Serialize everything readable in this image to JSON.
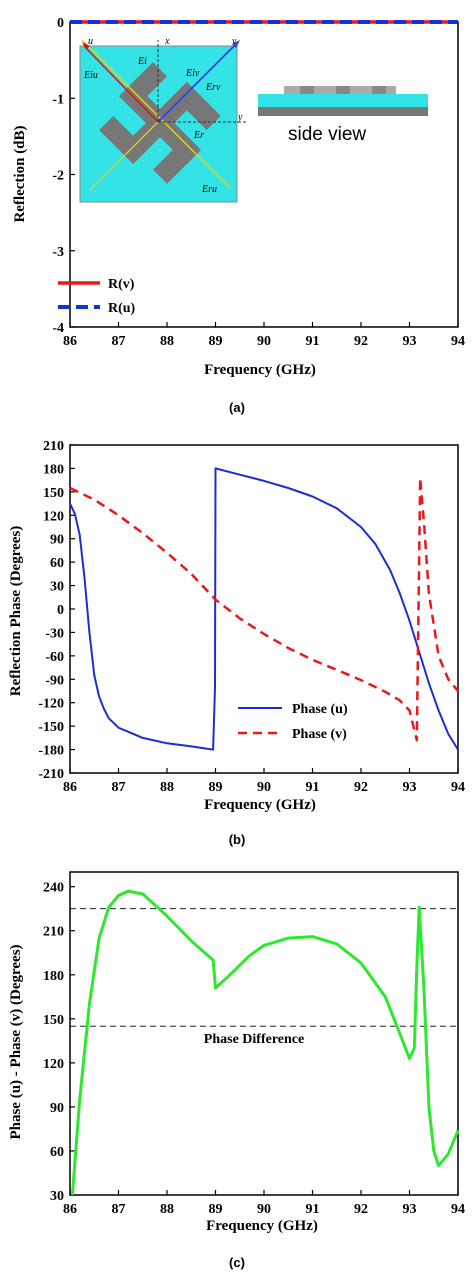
{
  "chart_data": [
    {
      "panel": "(a)",
      "type": "line",
      "xlabel": "Frequency (GHz)",
      "ylabel": "Reflection  (dB)",
      "xlim": [
        86,
        94
      ],
      "ylim": [
        -4,
        0
      ],
      "xticks": [
        86,
        87,
        88,
        89,
        90,
        91,
        92,
        93,
        94
      ],
      "yticks": [
        0,
        -1,
        -2,
        -3,
        -4
      ],
      "legend_position": "bottom-left",
      "series": [
        {
          "name": "R(v)",
          "color": "#e8191b",
          "style": "solid",
          "x": [
            86,
            94
          ],
          "y": [
            0,
            0
          ]
        },
        {
          "name": "R(u)",
          "color": "#1432d8",
          "style": "dashed",
          "x": [
            86,
            94
          ],
          "y": [
            0,
            0
          ]
        }
      ],
      "inset": {
        "axis_labels": [
          "u",
          "x",
          "v",
          "y"
        ],
        "field_labels": [
          "Eiu",
          "Ei",
          "Eiv",
          "Erv",
          "Er",
          "Eru"
        ],
        "side_view_label": "side view"
      }
    },
    {
      "panel": "(b)",
      "type": "line",
      "xlabel": "Frequency (GHz)",
      "ylabel": "Reflection Phase (Degrees)",
      "xlim": [
        86,
        94
      ],
      "ylim": [
        -210,
        210
      ],
      "xticks": [
        86,
        87,
        88,
        89,
        90,
        91,
        92,
        93,
        94
      ],
      "yticks": [
        210,
        180,
        150,
        120,
        90,
        60,
        30,
        0,
        -30,
        -60,
        -90,
        -120,
        -150,
        -180,
        -210
      ],
      "legend_position": "bottom-right",
      "series": [
        {
          "name": "Phase (u)",
          "color": "#1a2fcf",
          "style": "solid",
          "x": [
            86,
            86.1,
            86.2,
            86.3,
            86.4,
            86.5,
            86.6,
            86.7,
            86.8,
            87,
            87.5,
            88,
            88.5,
            88.95,
            88.99,
            89.0,
            89.5,
            90,
            90.5,
            91,
            91.5,
            92,
            92.3,
            92.6,
            92.8,
            93.0,
            93.2,
            93.4,
            93.6,
            93.8,
            94
          ],
          "y": [
            135,
            122,
            95,
            40,
            -30,
            -85,
            -112,
            -128,
            -140,
            -152,
            -165,
            -172,
            -176,
            -180,
            -100,
            180,
            172,
            164,
            155,
            144,
            129,
            105,
            83,
            50,
            20,
            -15,
            -55,
            -95,
            -130,
            -160,
            -180
          ]
        },
        {
          "name": "Phase (v)",
          "color": "#e8191b",
          "style": "dashed",
          "x": [
            86,
            86.5,
            87,
            87.5,
            88,
            88.5,
            89,
            89.5,
            90,
            90.5,
            91,
            91.5,
            92,
            92.5,
            92.8,
            93.0,
            93.15,
            93.22,
            93.3,
            93.4,
            93.6,
            93.8,
            94
          ],
          "y": [
            155,
            140,
            120,
            97,
            72,
            45,
            12,
            -12,
            -32,
            -50,
            -65,
            -78,
            -91,
            -106,
            -117,
            -130,
            -168,
            168,
            110,
            20,
            -60,
            -90,
            -105
          ]
        }
      ]
    },
    {
      "panel": "(c)",
      "type": "line",
      "xlabel": "Frequency (GHz)",
      "ylabel": "Phase (u) - Phase (v) (Degrees)",
      "xlim": [
        86,
        94
      ],
      "ylim": [
        30,
        250
      ],
      "xticks": [
        86,
        87,
        88,
        89,
        90,
        91,
        92,
        93,
        94
      ],
      "yticks": [
        240,
        210,
        180,
        150,
        120,
        90,
        60,
        30
      ],
      "annotation": "Phase Difference",
      "reference_lines": [
        225,
        145
      ],
      "series": [
        {
          "name": "",
          "color": "#2ee82e",
          "style": "solid",
          "x": [
            86.05,
            86.2,
            86.4,
            86.6,
            86.8,
            87.0,
            87.2,
            87.5,
            88.0,
            88.5,
            88.95,
            89.0,
            89.3,
            89.7,
            90.0,
            90.5,
            91.0,
            91.5,
            92.0,
            92.5,
            92.8,
            93.0,
            93.1,
            93.15,
            93.2,
            93.3,
            93.4,
            93.5,
            93.6,
            93.8,
            94.0
          ],
          "y": [
            30,
            95,
            160,
            205,
            226,
            234,
            237,
            235,
            220,
            203,
            190,
            171,
            180,
            193,
            200,
            205,
            206,
            201,
            188,
            165,
            140,
            123,
            130,
            185,
            226,
            170,
            90,
            60,
            50,
            58,
            74
          ]
        }
      ]
    }
  ]
}
